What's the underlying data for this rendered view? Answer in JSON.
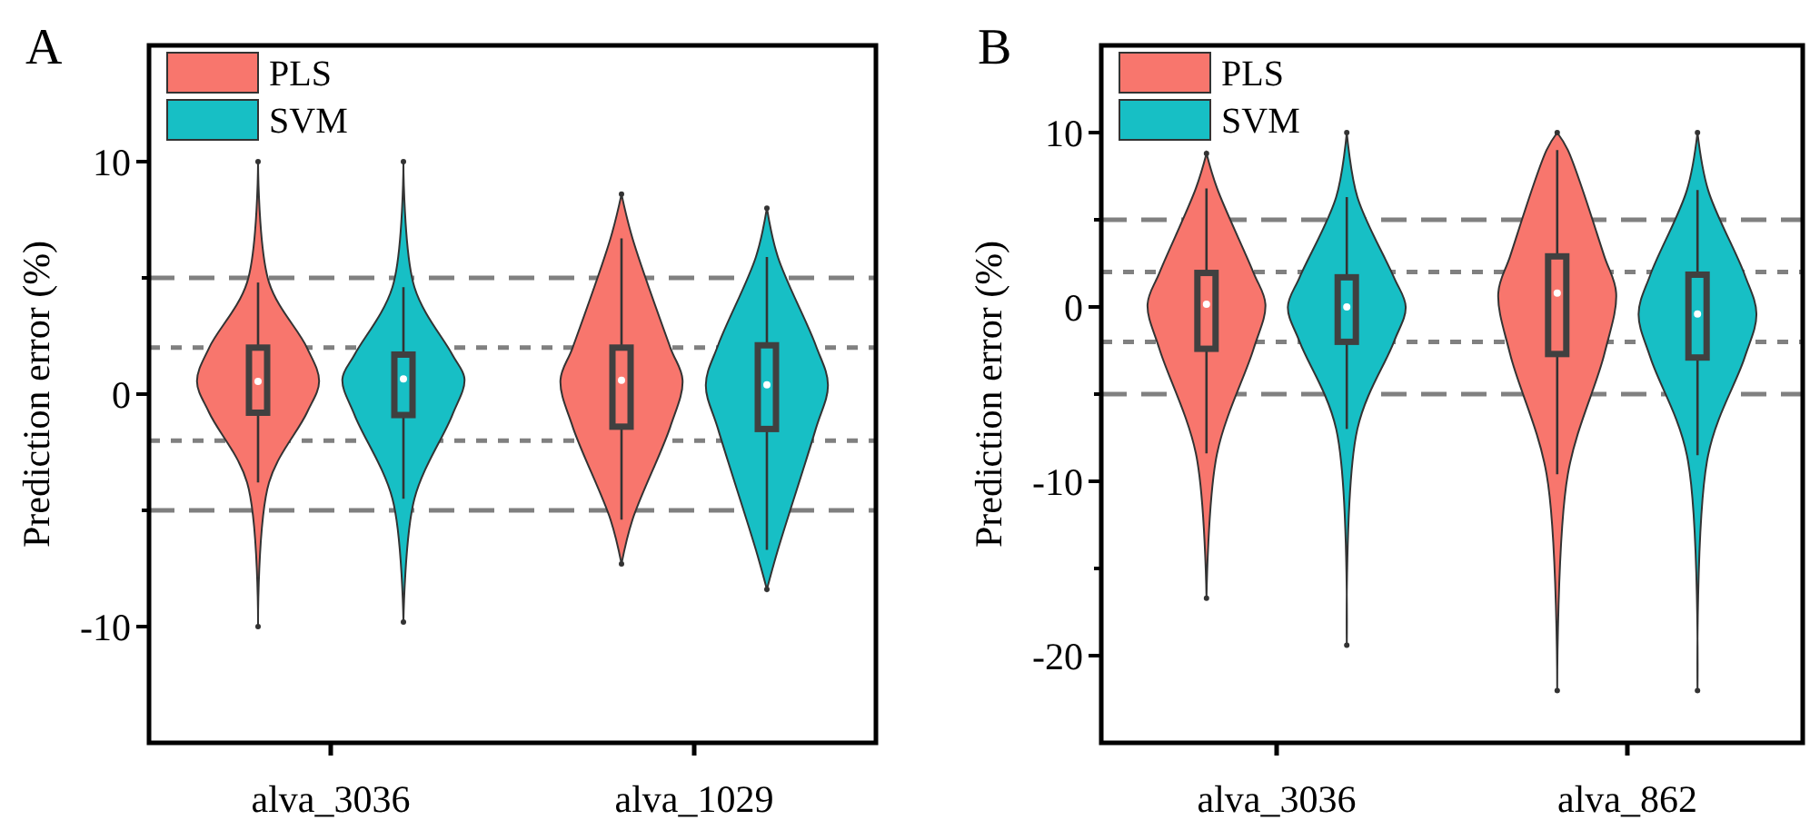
{
  "chart_data": [
    {
      "type": "box",
      "title": "A",
      "ylabel": "Prediction error (%)",
      "categories": [
        "alva_3036",
        "alva_1029"
      ],
      "ylim": [
        -15,
        15
      ],
      "yticks": [
        -10,
        {
          "value": -5,
          "label": null
        },
        0,
        {
          "value": 5,
          "label": null
        },
        10
      ],
      "legend": "top left",
      "grid": false,
      "series": [
        {
          "name": "PLS",
          "color": "#f8766d",
          "boxes": [
            {
              "low": -3.8,
              "q1": -0.8,
              "median": 0.55,
              "q3": 2.0,
              "high": 4.8,
              "outliers": [
                -10,
                10
              ]
            },
            {
              "low": -5.4,
              "q1": -1.4,
              "median": 0.6,
              "q3": 2.0,
              "high": 6.7,
              "outliers": [
                -7.3,
                8.6
              ]
            }
          ]
        },
        {
          "name": "SVM",
          "color": "#17bfc5",
          "boxes": [
            {
              "low": -4.5,
              "q1": -0.9,
              "median": 0.65,
              "q3": 1.7,
              "high": 4.6,
              "outliers": [
                -9.8,
                10
              ]
            },
            {
              "low": -6.7,
              "q1": -1.5,
              "median": 0.4,
              "q3": 2.1,
              "high": 5.9,
              "outliers": [
                -8.4,
                8
              ]
            }
          ]
        }
      ],
      "ref_lines": [
        {
          "axis": "y",
          "value": 5,
          "line_style": "dashed",
          "color": "#808080"
        },
        {
          "axis": "y",
          "value": 2,
          "line_style": "dotted",
          "color": "#808080"
        },
        {
          "axis": "y",
          "value": -2,
          "line_style": "dotted",
          "color": "#808080"
        },
        {
          "axis": "y",
          "value": -5,
          "line_style": "dashed",
          "color": "#808080"
        }
      ]
    },
    {
      "type": "box",
      "title": "B",
      "ylabel": "Prediction error (%)",
      "categories": [
        "alva_3036",
        "alva_862"
      ],
      "ylim": [
        -25,
        15
      ],
      "yticks": [
        -20,
        {
          "value": -15,
          "label": null
        },
        -10,
        {
          "value": -5,
          "label": null
        },
        0,
        {
          "value": 5,
          "label": null
        },
        10
      ],
      "legend": "top left",
      "grid": false,
      "series": [
        {
          "name": "PLS",
          "color": "#f8766d",
          "boxes": [
            {
              "low": -8.4,
              "q1": -2.4,
              "median": 0.15,
              "q3": 1.95,
              "high": 6.8,
              "outliers": [
                -16.7,
                8.8
              ]
            },
            {
              "low": -9.6,
              "q1": -2.7,
              "median": 0.8,
              "q3": 2.9,
              "high": 9,
              "outliers": [
                -22,
                10
              ]
            }
          ]
        },
        {
          "name": "SVM",
          "color": "#17bfc5",
          "boxes": [
            {
              "low": -7,
              "q1": -2,
              "median": 0,
              "q3": 1.7,
              "high": 6.3,
              "outliers": [
                -19.4,
                10
              ]
            },
            {
              "low": -8.5,
              "q1": -2.9,
              "median": -0.4,
              "q3": 1.85,
              "high": 6.7,
              "outliers": [
                -22,
                10
              ]
            }
          ]
        }
      ],
      "ref_lines": [
        {
          "axis": "y",
          "value": 5,
          "line_style": "dashed",
          "color": "#808080"
        },
        {
          "axis": "y",
          "value": 2,
          "line_style": "dotted",
          "color": "#808080"
        },
        {
          "axis": "y",
          "value": -2,
          "line_style": "dotted",
          "color": "#808080"
        },
        {
          "axis": "y",
          "value": -5,
          "line_style": "dashed",
          "color": "#808080"
        }
      ]
    }
  ]
}
